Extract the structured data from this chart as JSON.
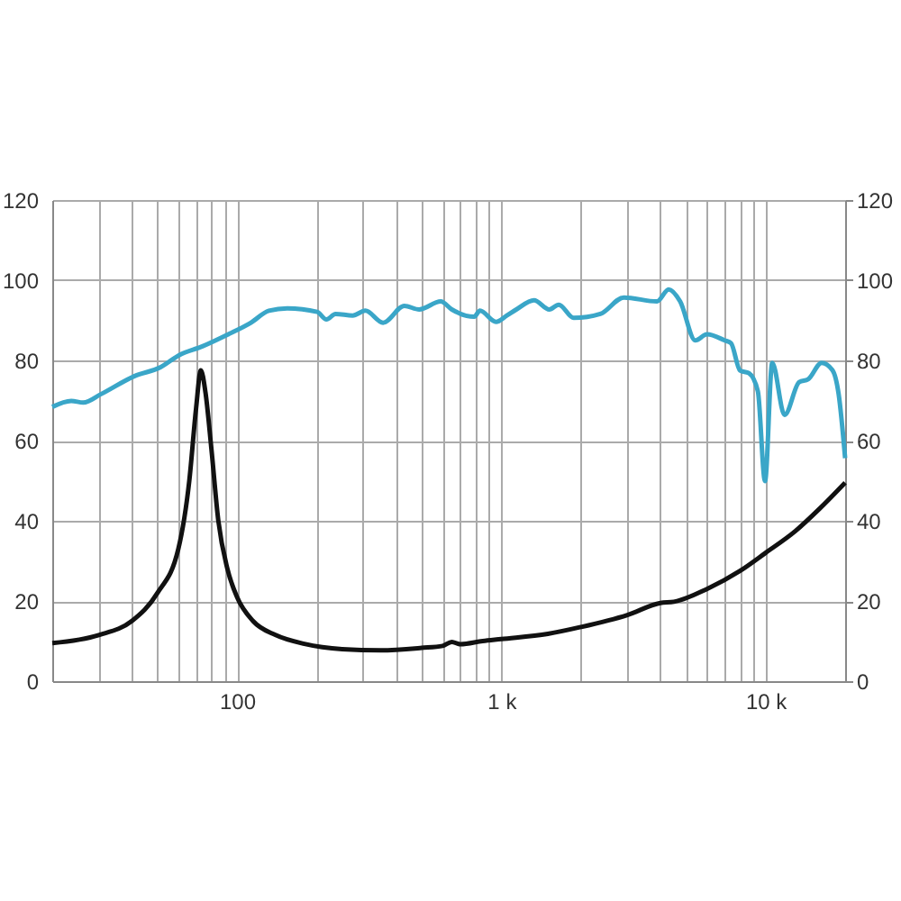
{
  "chart_data": {
    "type": "line",
    "x": [
      20,
      23.6,
      26.2,
      30.6,
      41,
      51.4,
      60.4,
      74,
      92,
      113,
      132,
      155,
      201,
      218,
      236,
      274,
      306,
      357,
      430,
      489,
      590,
      650,
      790,
      830,
      955,
      1050,
      1140,
      1330,
      1520,
      1650,
      1880,
      2370,
      2910,
      3880,
      4300,
      4750,
      5420,
      6000,
      7000,
      7400,
      8000,
      8650,
      9350,
      9950,
      10600,
      11800,
      13400,
      14500,
      16300,
      17900,
      18900,
      20000
    ],
    "series": [
      {
        "color": "#3aa6c8",
        "values": [
          68.4,
          69.9,
          69.5,
          71.6,
          76.1,
          78.3,
          81.3,
          83.5,
          86.4,
          89.4,
          92.4,
          93,
          92.1,
          90.2,
          91.6,
          91.2,
          92.4,
          89.4,
          93.6,
          92.7,
          94.7,
          92.7,
          90.9,
          92.4,
          89.6,
          91.2,
          92.7,
          95,
          92.7,
          93.9,
          90.6,
          91.6,
          95.7,
          94.7,
          97.7,
          94.7,
          85,
          86.5,
          85,
          84.3,
          77.5,
          76.8,
          72.3,
          49.9,
          79.4,
          66.4,
          74.6,
          75.3,
          79.4,
          77.6,
          71.6,
          55.6
        ]
      },
      {
        "color": "#111111",
        "x": [
          20,
          30,
          40,
          50,
          60,
          66,
          70,
          73,
          76,
          80,
          85,
          92,
          100,
          115,
          140,
          180,
          250,
          350,
          500,
          600,
          650,
          700,
          850,
          1000,
          1500,
          2000,
          3000,
          4000,
          4500,
          6000,
          8000,
          10000,
          13000,
          16000,
          20000
        ],
        "values": [
          9.5,
          11.5,
          15,
          22,
          33,
          50,
          68,
          77.5,
          72,
          58,
          40,
          28,
          21,
          15,
          11.5,
          9.3,
          8,
          7.7,
          8.3,
          8.8,
          9.8,
          9.2,
          10,
          10.5,
          11.8,
          13.5,
          16.5,
          19.5,
          19.8,
          23,
          27.5,
          32,
          37.5,
          43,
          49.5
        ]
      }
    ],
    "log": "x",
    "xlim": [
      20,
      20000
    ],
    "xticks": [
      {
        "value": 20,
        "label": null
      },
      {
        "value": 30,
        "label": null
      },
      {
        "value": 40,
        "label": null
      },
      {
        "value": 50,
        "label": null
      },
      {
        "value": 60,
        "label": null
      },
      {
        "value": 70,
        "label": null
      },
      {
        "value": 80,
        "label": null
      },
      {
        "value": 90,
        "label": null
      },
      100,
      {
        "value": 200,
        "label": null
      },
      {
        "value": 300,
        "label": null
      },
      {
        "value": 400,
        "label": null
      },
      {
        "value": 500,
        "label": null
      },
      {
        "value": 600,
        "label": null
      },
      {
        "value": 700,
        "label": null
      },
      {
        "value": 800,
        "label": null
      },
      {
        "value": 900,
        "label": null
      },
      {
        "value": 1000,
        "label": "1 k"
      },
      {
        "value": 2000,
        "label": null
      },
      {
        "value": 3000,
        "label": null
      },
      {
        "value": 4000,
        "label": null
      },
      {
        "value": 5000,
        "label": null
      },
      {
        "value": 6000,
        "label": null
      },
      {
        "value": 7000,
        "label": null
      },
      {
        "value": 8000,
        "label": null
      },
      {
        "value": 9000,
        "label": null
      },
      {
        "value": 10000,
        "label": "10 k"
      },
      {
        "value": 20000,
        "label": null
      }
    ],
    "ylim": [
      0,
      120
    ],
    "yticks": [
      0,
      20,
      40,
      60,
      80,
      100,
      120
    ],
    "y2lim": [
      0,
      120
    ],
    "y2ticks": [
      0,
      20,
      40,
      60,
      80,
      100,
      120
    ],
    "grid": true,
    "legend": false,
    "line_style": "solid",
    "marker": "none"
  }
}
